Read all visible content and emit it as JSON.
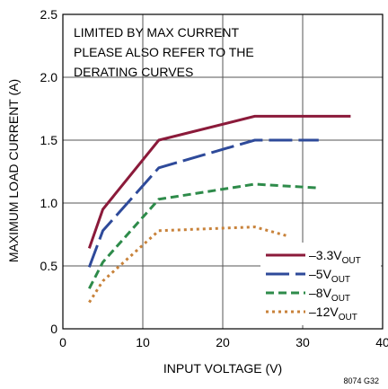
{
  "chart_data": {
    "type": "line",
    "xlabel": "INPUT VOLTAGE (V)",
    "ylabel": "MAXIMUM LOAD CURRENT (A)",
    "xlim": [
      0,
      40
    ],
    "ylim": [
      0,
      2.5
    ],
    "x_ticks": [
      "0",
      "10",
      "20",
      "30",
      "40"
    ],
    "y_ticks": [
      "0",
      "0.5",
      "1.0",
      "1.5",
      "2.0",
      "2.5"
    ],
    "x_tick_values": [
      0,
      10,
      20,
      30,
      40
    ],
    "y_tick_values": [
      0,
      0.5,
      1.0,
      1.5,
      2.0,
      2.5
    ],
    "grid": true,
    "legend_position": "bottom-right",
    "annotation": [
      "LIMITED BY MAX CURRENT",
      "PLEASE ALSO REFER TO THE",
      "DERATING CURVES"
    ],
    "figure_id": "8074 G32",
    "series": [
      {
        "name": "–3.3V",
        "name_sub": "OUT",
        "color": "#8b1a3a",
        "dash": "solid",
        "x": [
          3.3,
          5,
          12,
          24,
          36
        ],
        "y": [
          0.64,
          0.95,
          1.5,
          1.69,
          1.69
        ]
      },
      {
        "name": "–5V",
        "name_sub": "OUT",
        "color": "#2e4a9a",
        "dash": "long-dash",
        "x": [
          3.3,
          5,
          12,
          24,
          32
        ],
        "y": [
          0.49,
          0.78,
          1.28,
          1.5,
          1.5
        ]
      },
      {
        "name": "–8V",
        "name_sub": "OUT",
        "color": "#2e8b4a",
        "dash": "dash",
        "x": [
          3.3,
          5,
          12,
          24,
          32
        ],
        "y": [
          0.32,
          0.53,
          1.03,
          1.15,
          1.12
        ]
      },
      {
        "name": "–12V",
        "name_sub": "OUT",
        "color": "#c8823a",
        "dash": "dot",
        "x": [
          3.3,
          5,
          12,
          24,
          28
        ],
        "y": [
          0.21,
          0.38,
          0.78,
          0.81,
          0.74
        ]
      }
    ]
  }
}
